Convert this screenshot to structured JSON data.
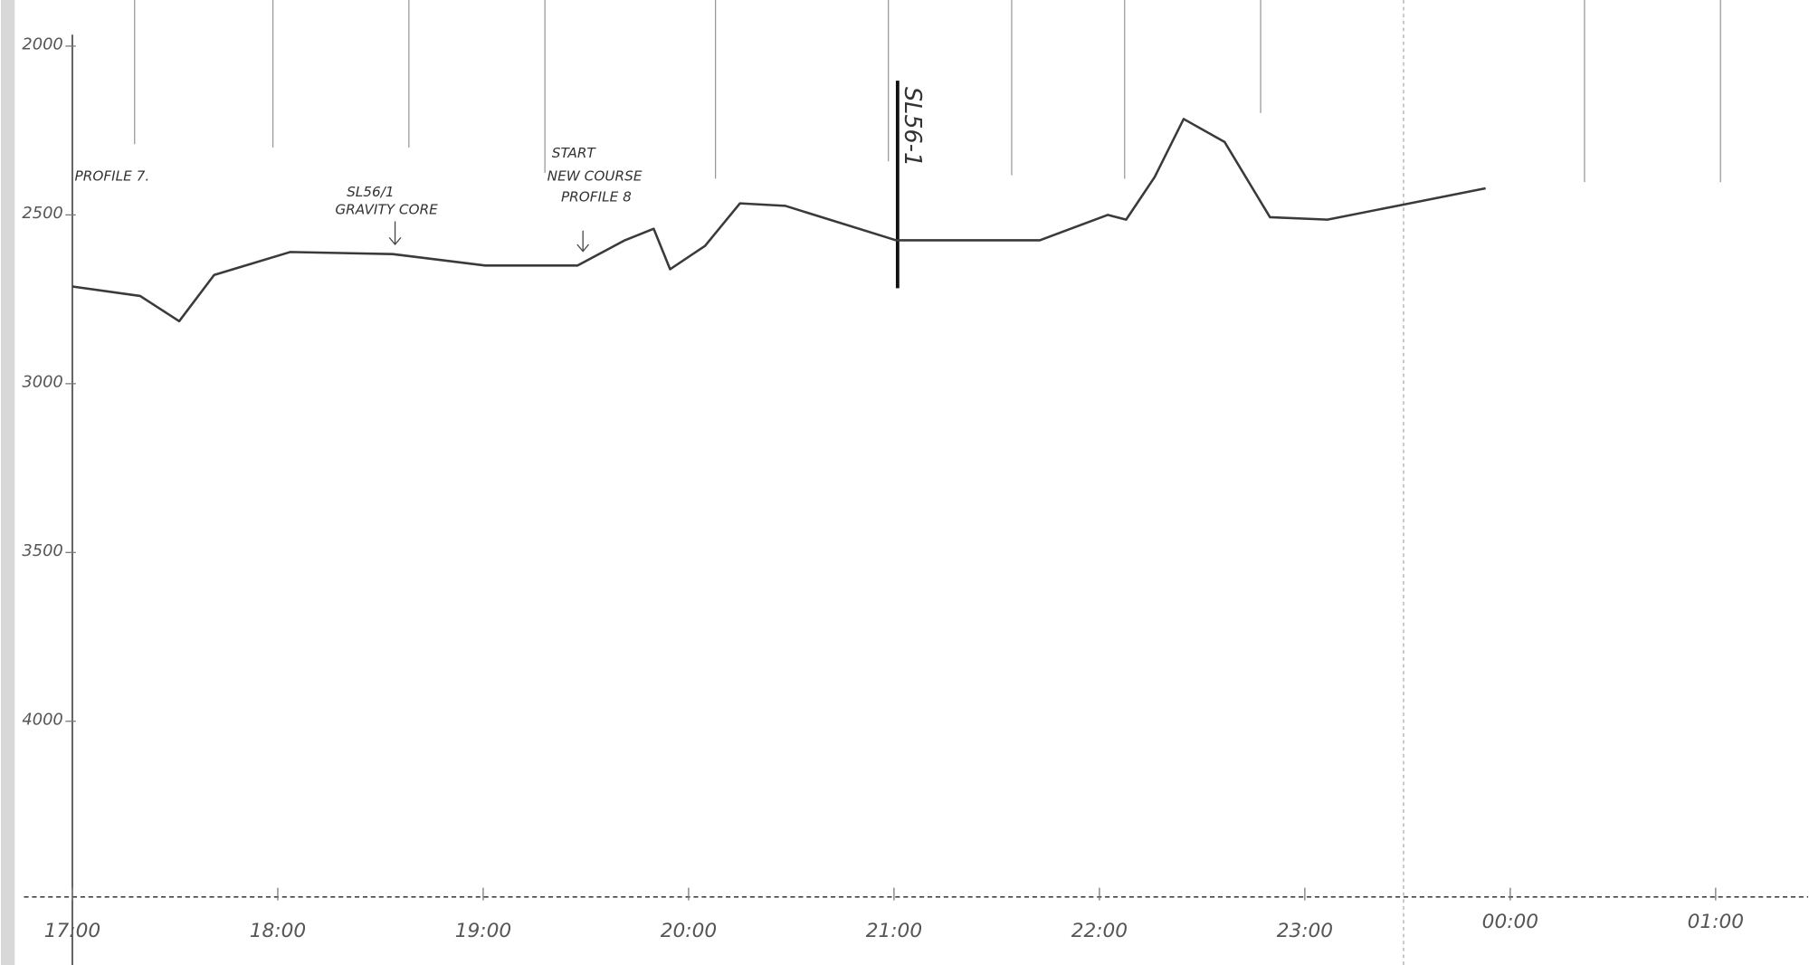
{
  "chart_data": {
    "type": "line",
    "x": [
      17.0,
      17.33,
      17.52,
      17.69,
      18.06,
      18.56,
      19.01,
      19.46,
      19.69,
      19.83,
      19.91,
      20.08,
      20.25,
      20.47,
      21.01,
      21.71,
      22.04,
      22.13,
      22.27,
      22.41,
      22.61,
      22.83,
      23.11,
      23.45,
      23.88
    ],
    "values": [
      2712,
      2740,
      2815,
      2678,
      2610,
      2616,
      2650,
      2650,
      2575,
      2541,
      2661,
      2592,
      2466,
      2473,
      2575,
      2575,
      2500,
      2514,
      2387,
      2216,
      2284,
      2507,
      2514,
      2473,
      2421
    ],
    "color": "#3a3a3a",
    "xlim": [
      17,
      25.45
    ],
    "xticks": [
      {
        "value": 17,
        "label": "17:00"
      },
      {
        "value": 18,
        "label": "18:00"
      },
      {
        "value": 19,
        "label": "19:00"
      },
      {
        "value": 20,
        "label": "20:00"
      },
      {
        "value": 21,
        "label": "21:00"
      },
      {
        "value": 22,
        "label": "22:00"
      },
      {
        "value": 23,
        "label": "23:00"
      },
      {
        "value": 24,
        "label": "00:00"
      },
      {
        "value": 25,
        "label": "01:00"
      }
    ],
    "ylim": [
      2000,
      4500
    ],
    "y_inverted": true,
    "yticks": [
      2000,
      2500,
      3000,
      3500,
      4000
    ],
    "grid": false,
    "annotations": [
      "PROFILE 7.",
      "SL56/1",
      "GRAVITY CORE",
      "START",
      "NEW COURSE",
      "PROFILE 8",
      "SL56-1"
    ]
  }
}
